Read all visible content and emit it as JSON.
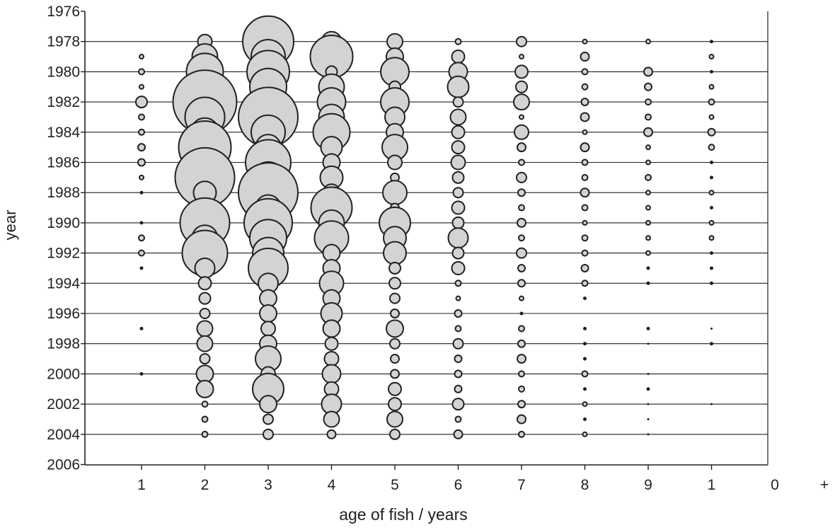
{
  "chart_data": {
    "type": "scatter",
    "subtype": "bubble",
    "title": "",
    "xlabel": "age of fish / years",
    "ylabel": "year",
    "x_tick_labels": [
      "1",
      "2",
      "3",
      "4",
      "5",
      "6",
      "7",
      "8",
      "9",
      "1",
      "0",
      "+"
    ],
    "y_tick_labels": [
      "1976",
      "1978",
      "1980",
      "1982",
      "1984",
      "1986",
      "1988",
      "1990",
      "1992",
      "1994",
      "1996",
      "1998",
      "2000",
      "2002",
      "2004",
      "2006"
    ],
    "ylim": [
      1976,
      2006
    ],
    "y_reversed": true,
    "grid": "horizontal-every-2-years",
    "colors": {
      "bubble_fill": "#d1d3d4",
      "bubble_stroke": "#231f20",
      "axis": "#231f20"
    },
    "bubble_size_note": "relative bubble radius (arbitrary units, as drawn)",
    "series": [
      {
        "age": 1,
        "years": [
          1979,
          1980,
          1981,
          1982,
          1983,
          1984,
          1985,
          1986,
          1987,
          1988,
          1990,
          1991,
          1992,
          1993,
          1997,
          2000
        ],
        "sizes": [
          3,
          4,
          3,
          8,
          4,
          4,
          5,
          5,
          3,
          2,
          2,
          4,
          4,
          2,
          2,
          2
        ]
      },
      {
        "age": 2,
        "years": [
          1978,
          1979,
          1980,
          1981,
          1982,
          1983,
          1984,
          1985,
          1986,
          1987,
          1988,
          1989,
          1990,
          1991,
          1992,
          1993,
          1994,
          1995,
          1996,
          1997,
          1998,
          1999,
          2000,
          2001,
          2002,
          2003,
          2004
        ],
        "sizes": [
          10,
          18,
          26,
          14,
          45,
          28,
          20,
          37,
          14,
          42,
          16,
          12,
          35,
          18,
          32,
          14,
          9,
          8,
          7,
          11,
          11,
          7,
          12,
          12,
          4,
          4,
          4
        ]
      },
      {
        "age": 3,
        "years": [
          1978,
          1979,
          1980,
          1981,
          1982,
          1983,
          1984,
          1985,
          1986,
          1987,
          1988,
          1989,
          1990,
          1991,
          1992,
          1993,
          1994,
          1995,
          1996,
          1997,
          1998,
          1999,
          2000,
          2001,
          2002,
          2003,
          2004
        ],
        "sizes": [
          36,
          24,
          30,
          26,
          20,
          42,
          24,
          18,
          32,
          22,
          42,
          18,
          34,
          26,
          22,
          28,
          14,
          12,
          12,
          10,
          12,
          18,
          10,
          22,
          12,
          7,
          7
        ]
      },
      {
        "age": 4,
        "years": [
          1978,
          1979,
          1980,
          1981,
          1982,
          1983,
          1984,
          1985,
          1986,
          1987,
          1988,
          1989,
          1990,
          1991,
          1992,
          1993,
          1994,
          1995,
          1996,
          1997,
          1998,
          1999,
          2000,
          2001,
          2002,
          2003,
          2004
        ],
        "sizes": [
          14,
          30,
          8,
          18,
          20,
          18,
          26,
          15,
          12,
          16,
          12,
          29,
          18,
          24,
          12,
          12,
          17,
          12,
          15,
          12,
          9,
          10,
          13,
          10,
          14,
          11,
          6
        ]
      },
      {
        "age": 5,
        "years": [
          1978,
          1979,
          1980,
          1981,
          1982,
          1983,
          1984,
          1985,
          1986,
          1987,
          1988,
          1989,
          1990,
          1991,
          1992,
          1993,
          1994,
          1995,
          1996,
          1997,
          1998,
          1999,
          2000,
          2001,
          2002,
          2003,
          2004
        ],
        "sizes": [
          11,
          12,
          20,
          8,
          20,
          14,
          12,
          18,
          10,
          6,
          17,
          6,
          22,
          16,
          16,
          8,
          8,
          7,
          6,
          12,
          7,
          6,
          6,
          9,
          9,
          11,
          7
        ]
      },
      {
        "age": 6,
        "years": [
          1978,
          1979,
          1980,
          1981,
          1982,
          1983,
          1984,
          1985,
          1986,
          1987,
          1988,
          1989,
          1990,
          1991,
          1992,
          1993,
          1994,
          1995,
          1996,
          1997,
          1998,
          1999,
          2000,
          2001,
          2002,
          2003,
          2004
        ],
        "sizes": [
          4,
          9,
          13,
          15,
          7,
          11,
          9,
          9,
          10,
          8,
          7,
          9,
          8,
          14,
          8,
          9,
          4,
          3,
          5,
          4,
          7,
          5,
          5,
          5,
          8,
          4,
          6
        ]
      },
      {
        "age": 7,
        "years": [
          1978,
          1979,
          1980,
          1981,
          1982,
          1983,
          1984,
          1985,
          1986,
          1987,
          1988,
          1989,
          1990,
          1991,
          1992,
          1993,
          1994,
          1995,
          1996,
          1997,
          1998,
          1999,
          2000,
          2001,
          2002,
          2003,
          2004
        ],
        "sizes": [
          7,
          3,
          9,
          8,
          11,
          3,
          10,
          6,
          4,
          7,
          5,
          4,
          6,
          4,
          7,
          5,
          5,
          3,
          2,
          4,
          5,
          6,
          4,
          4,
          5,
          6,
          4
        ]
      },
      {
        "age": 8,
        "years": [
          1978,
          1979,
          1980,
          1981,
          1982,
          1983,
          1984,
          1985,
          1986,
          1987,
          1988,
          1989,
          1990,
          1991,
          1992,
          1993,
          1994,
          1995,
          1997,
          1998,
          1999,
          2000,
          2001,
          2002,
          2003,
          2004
        ],
        "sizes": [
          3,
          6,
          4,
          4,
          5,
          6,
          3,
          6,
          4,
          4,
          6,
          4,
          3,
          4,
          4,
          5,
          4,
          2,
          2,
          2,
          2,
          4,
          2,
          3,
          2,
          3
        ]
      },
      {
        "age": 9,
        "years": [
          1978,
          1980,
          1981,
          1982,
          1983,
          1984,
          1985,
          1986,
          1987,
          1988,
          1989,
          1990,
          1991,
          1992,
          1993,
          1994,
          1997,
          1998,
          2000,
          2001,
          2002,
          2003,
          2004
        ],
        "sizes": [
          3,
          6,
          5,
          4,
          4,
          6,
          3,
          3,
          4,
          3,
          3,
          3,
          3,
          3,
          2,
          2,
          2,
          1,
          1,
          2,
          1,
          1,
          1
        ]
      },
      {
        "age": "10+",
        "years": [
          1978,
          1979,
          1980,
          1981,
          1982,
          1983,
          1984,
          1985,
          1986,
          1987,
          1988,
          1989,
          1990,
          1991,
          1992,
          1993,
          1994,
          1997,
          1998,
          2002
        ],
        "sizes": [
          2,
          3,
          2,
          3,
          4,
          3,
          5,
          4,
          2,
          2,
          3,
          2,
          3,
          3,
          2,
          2,
          2,
          1,
          2,
          1
        ]
      }
    ]
  }
}
